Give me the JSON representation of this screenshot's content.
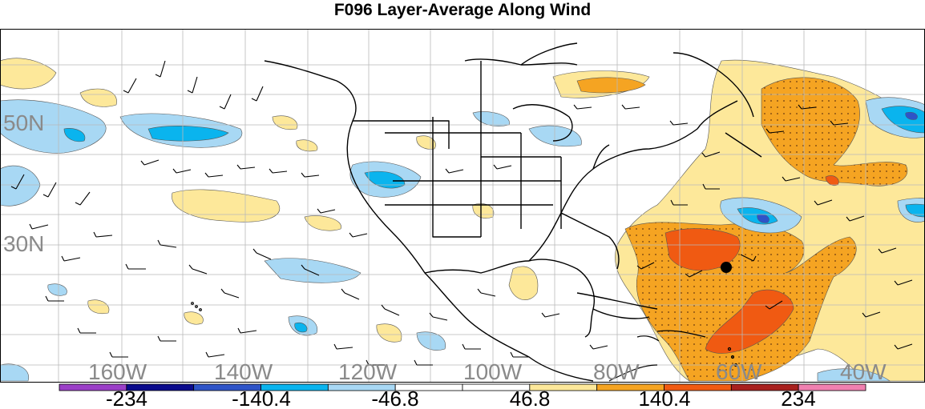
{
  "title": "F096 Layer-Average Along Wind",
  "map": {
    "lon_labels": [
      "160W",
      "140W",
      "120W",
      "100W",
      "80W",
      "60W",
      "40W"
    ],
    "lat_labels": [
      "50N",
      "30N"
    ],
    "marker": "storm-center-dot"
  },
  "colorbar": {
    "colors": [
      "#9b3fc8",
      "#0a0a8c",
      "#2e54c8",
      "#0ab4ee",
      "#a8d8f4",
      "#ffffff",
      "#ffffff",
      "#fde89a",
      "#f5a422",
      "#f05a12",
      "#a8201e",
      "#f080b0"
    ],
    "tick_labels": [
      "-234",
      "-140.4",
      "-46.8",
      "46.8",
      "140.4",
      "234"
    ]
  }
}
